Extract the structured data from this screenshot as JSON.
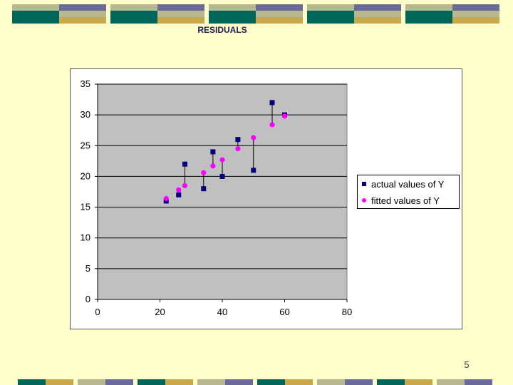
{
  "slide": {
    "title": "RESIDUALS",
    "page_number": "5"
  },
  "colors": {
    "background": "#ffffcc",
    "plot_area": "#c0c0c0",
    "actual": "#000080",
    "fitted": "#ff00ff",
    "band_teal": "#00665a",
    "band_gold": "#c8a84a",
    "band_slate": "#6a6a9a",
    "band_sage": "#b8b890"
  },
  "chart_data": {
    "type": "scatter",
    "xlim": [
      0,
      80
    ],
    "ylim": [
      0,
      35
    ],
    "x_ticks": [
      0,
      20,
      40,
      60,
      80
    ],
    "y_ticks": [
      0,
      5,
      10,
      15,
      20,
      25,
      30,
      35
    ],
    "grid": "horizontal",
    "legend_position": "right",
    "series": [
      {
        "name": "actual values of Y",
        "marker": "square",
        "points": [
          [
            22,
            16
          ],
          [
            26,
            17
          ],
          [
            28,
            22
          ],
          [
            34,
            18
          ],
          [
            37,
            24
          ],
          [
            40,
            20
          ],
          [
            45,
            26
          ],
          [
            50,
            21
          ],
          [
            56,
            32
          ],
          [
            60,
            30
          ]
        ]
      },
      {
        "name": "fitted values of Y",
        "marker": "circle",
        "points": [
          [
            22,
            16.4
          ],
          [
            26,
            17.8
          ],
          [
            28,
            18.5
          ],
          [
            34,
            20.6
          ],
          [
            37,
            21.7
          ],
          [
            40,
            22.7
          ],
          [
            45,
            24.5
          ],
          [
            50,
            26.3
          ],
          [
            56,
            28.4
          ],
          [
            60,
            29.8
          ]
        ]
      }
    ]
  }
}
